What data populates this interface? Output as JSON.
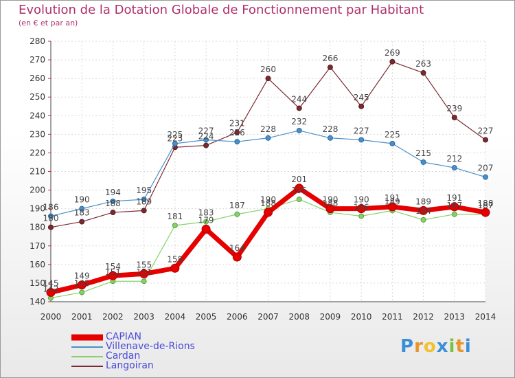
{
  "title": "Evolution de la Dotation Globale de Fonctionnement par Habitant",
  "subtitle": "(en € et par an)",
  "logo": {
    "text": "Proxiti",
    "letters": [
      "P",
      "r",
      "o",
      "x",
      "i",
      "t",
      "i"
    ],
    "colors": [
      "#3a8fd8",
      "#e8962a",
      "#f2c12e",
      "#3a8fd8",
      "#7ac143",
      "#e8962a",
      "#3a8fd8"
    ]
  },
  "chart_data": {
    "type": "line",
    "title": "Evolution de la Dotation Globale de Fonctionnement par Habitant",
    "subtitle": "(en € et par an)",
    "x": [
      "2000",
      "2001",
      "2002",
      "2003",
      "2004",
      "2005",
      "2006",
      "2007",
      "2008",
      "2009",
      "2010",
      "2011",
      "2012",
      "2013",
      "2014"
    ],
    "ylim": [
      140,
      280
    ],
    "yticks": [
      140,
      150,
      160,
      170,
      180,
      190,
      200,
      210,
      220,
      230,
      240,
      250,
      260,
      270,
      280
    ],
    "grid": true,
    "legend": "bottom-left",
    "series": [
      {
        "name": "CAPIAN",
        "color": "#e60000",
        "values": [
          145,
          149,
          154,
          155,
          158,
          179,
          164,
          188,
          201,
          190,
          190,
          191,
          189,
          191,
          188
        ]
      },
      {
        "name": "Villenave-de-Rions",
        "color": "#4a8fc8",
        "values": [
          186,
          190,
          194,
          195,
          225,
          227,
          226,
          228,
          232,
          228,
          227,
          225,
          215,
          212,
          207
        ]
      },
      {
        "name": "Cardan",
        "color": "#86d16a",
        "values": [
          142,
          145,
          151,
          151,
          181,
          183,
          187,
          190,
          195,
          188,
          186,
          189,
          184,
          187,
          187
        ]
      },
      {
        "name": "Langoiran",
        "color": "#7a2a30",
        "values": [
          180,
          183,
          188,
          189,
          223,
          224,
          231,
          260,
          244,
          266,
          245,
          269,
          263,
          239,
          227
        ]
      }
    ]
  }
}
